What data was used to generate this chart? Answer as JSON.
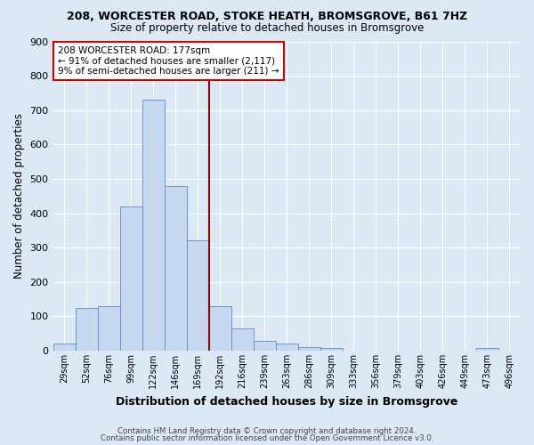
{
  "title": "208, WORCESTER ROAD, STOKE HEATH, BROMSGROVE, B61 7HZ",
  "subtitle": "Size of property relative to detached houses in Bromsgrove",
  "xlabel": "Distribution of detached houses by size in Bromsgrove",
  "ylabel": "Number of detached properties",
  "bar_labels": [
    "29sqm",
    "52sqm",
    "76sqm",
    "99sqm",
    "122sqm",
    "146sqm",
    "169sqm",
    "192sqm",
    "216sqm",
    "239sqm",
    "263sqm",
    "286sqm",
    "309sqm",
    "333sqm",
    "356sqm",
    "379sqm",
    "403sqm",
    "426sqm",
    "449sqm",
    "473sqm",
    "496sqm"
  ],
  "bar_values": [
    20,
    125,
    130,
    420,
    730,
    480,
    320,
    130,
    65,
    28,
    22,
    11,
    8,
    0,
    0,
    0,
    0,
    0,
    0,
    8,
    0
  ],
  "bar_color": "#c5d8f0",
  "bar_edge_color": "#5b8bc9",
  "vline_color": "#8b0000",
  "annotation_text": "208 WORCESTER ROAD: 177sqm\n← 91% of detached houses are smaller (2,117)\n9% of semi-detached houses are larger (211) →",
  "annotation_box_color": "#ffffff",
  "annotation_box_edge_color": "#cc0000",
  "bg_color": "#dde8f5",
  "grid_color": "#ffffff",
  "ylim": [
    0,
    900
  ],
  "yticks": [
    0,
    100,
    200,
    300,
    400,
    500,
    600,
    700,
    800,
    900
  ],
  "footer1": "Contains HM Land Registry data © Crown copyright and database right 2024.",
  "footer2": "Contains public sector information licensed under the Open Government Licence v3.0."
}
